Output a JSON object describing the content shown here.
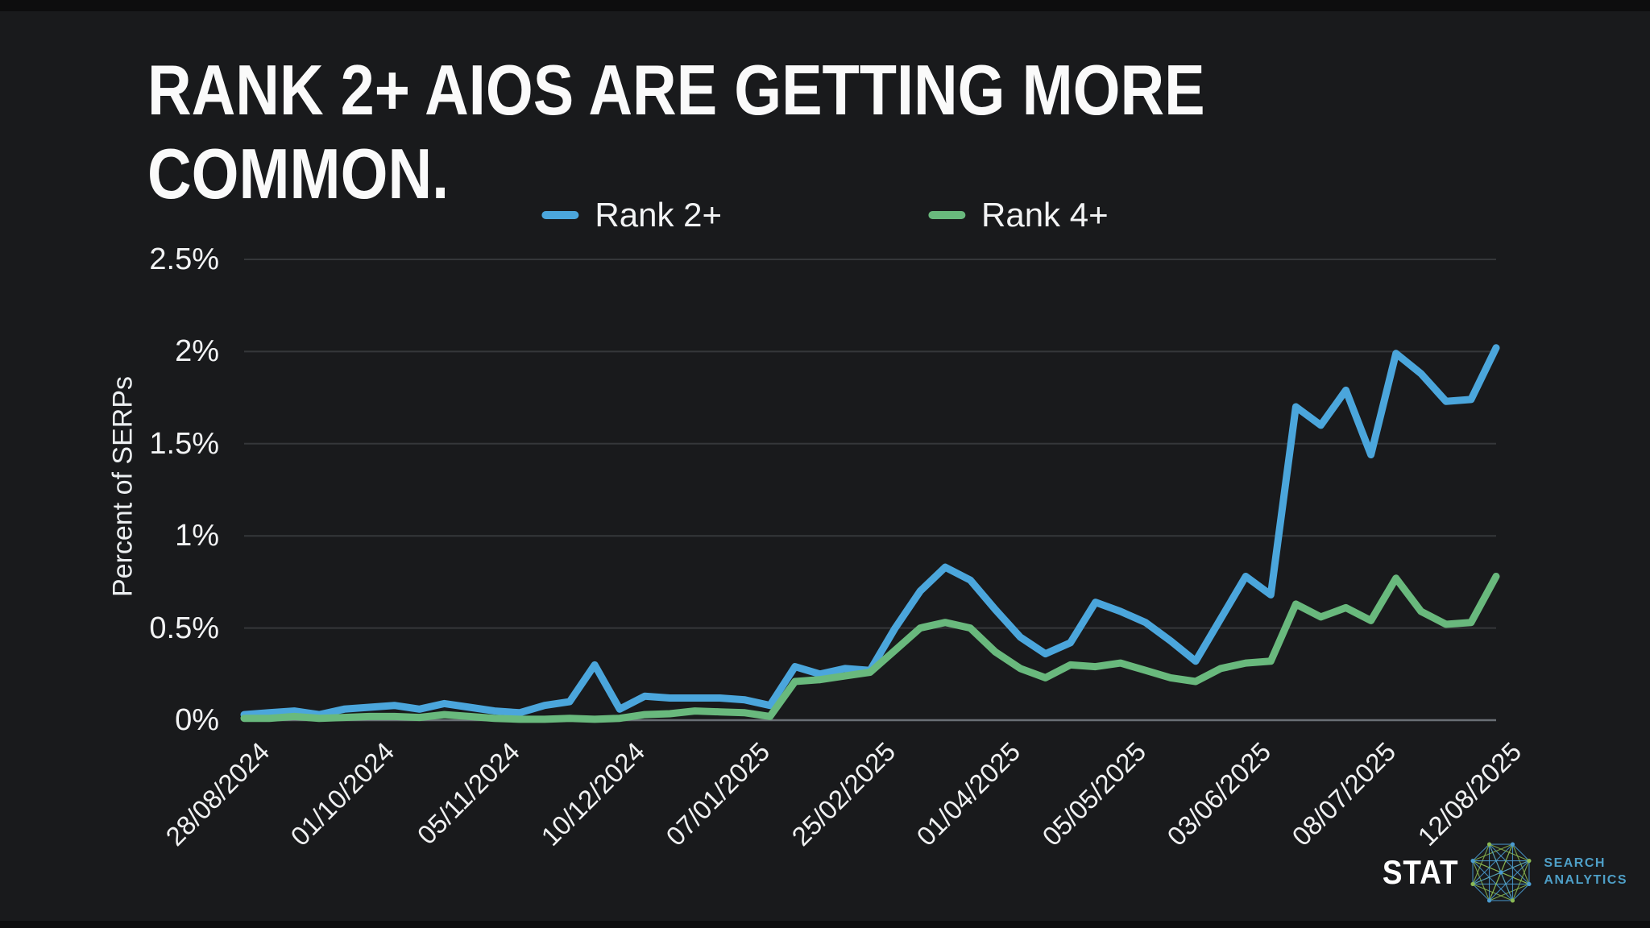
{
  "slide": {
    "title_line1": "RANK 2+ AIOS ARE GETTING MORE",
    "title_line2": "COMMON."
  },
  "legend": {
    "items": [
      {
        "label": "Rank 2+",
        "color": "#4ba6dc"
      },
      {
        "label": "Rank 4+",
        "color": "#69b97d"
      }
    ]
  },
  "axes": {
    "y_title": "Percent of SERPs"
  },
  "chart_data": {
    "type": "line",
    "title": "RANK 2+ AIOS ARE GETTING MORE COMMON.",
    "ylabel": "Percent of SERPs",
    "ylim": [
      0,
      2.5
    ],
    "grid": "horizontal-only",
    "legend_position": "top-center",
    "background": "#191a1c",
    "gridline_color": "#35373a",
    "zeroline_color": "#6a6f75",
    "yticks": [
      {
        "value": 2.5,
        "label": "2.5%"
      },
      {
        "value": 2.0,
        "label": "2%"
      },
      {
        "value": 1.5,
        "label": "1.5%"
      },
      {
        "value": 1.0,
        "label": "1%"
      },
      {
        "value": 0.5,
        "label": "0.5%"
      },
      {
        "value": 0.0,
        "label": "0%"
      }
    ],
    "xticks": [
      {
        "index": 0,
        "label": "28/08/2024"
      },
      {
        "index": 5,
        "label": "01/10/2024"
      },
      {
        "index": 10,
        "label": "05/11/2024"
      },
      {
        "index": 15,
        "label": "10/12/2024"
      },
      {
        "index": 20,
        "label": "07/01/2025"
      },
      {
        "index": 25,
        "label": "25/02/2025"
      },
      {
        "index": 30,
        "label": "01/04/2025"
      },
      {
        "index": 35,
        "label": "05/05/2025"
      },
      {
        "index": 40,
        "label": "03/06/2025"
      },
      {
        "index": 45,
        "label": "08/07/2025"
      },
      {
        "index": 50,
        "label": "12/08/2025"
      }
    ],
    "series": [
      {
        "name": "Rank 2+",
        "color": "#4ba6dc",
        "values": [
          0.03,
          0.04,
          0.05,
          0.03,
          0.06,
          0.07,
          0.08,
          0.06,
          0.09,
          0.07,
          0.05,
          0.04,
          0.08,
          0.1,
          0.3,
          0.06,
          0.13,
          0.12,
          0.12,
          0.12,
          0.11,
          0.08,
          0.29,
          0.25,
          0.28,
          0.27,
          0.5,
          0.7,
          0.83,
          0.76,
          0.6,
          0.45,
          0.36,
          0.42,
          0.64,
          0.59,
          0.53,
          0.43,
          0.32,
          0.55,
          0.78,
          0.68,
          1.7,
          1.6,
          1.79,
          1.44,
          1.99,
          1.88,
          1.73,
          1.74,
          2.02
        ]
      },
      {
        "name": "Rank 4+",
        "color": "#69b97d",
        "values": [
          0.01,
          0.01,
          0.02,
          0.01,
          0.015,
          0.02,
          0.02,
          0.015,
          0.03,
          0.02,
          0.01,
          0.005,
          0.005,
          0.01,
          0.005,
          0.01,
          0.03,
          0.035,
          0.05,
          0.045,
          0.04,
          0.02,
          0.21,
          0.22,
          0.24,
          0.26,
          0.38,
          0.5,
          0.53,
          0.5,
          0.37,
          0.28,
          0.23,
          0.3,
          0.29,
          0.31,
          0.27,
          0.23,
          0.21,
          0.28,
          0.31,
          0.32,
          0.63,
          0.56,
          0.61,
          0.54,
          0.77,
          0.59,
          0.52,
          0.53,
          0.78
        ]
      }
    ]
  },
  "logo": {
    "brand": "STAT",
    "subtitle_line1": "SEARCH",
    "subtitle_line2": "ANALYTICS",
    "accent_blue": "#4a9bd0",
    "accent_green": "#8ab954"
  }
}
